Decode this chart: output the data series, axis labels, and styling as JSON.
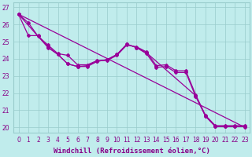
{
  "xlabel": "Windchill (Refroidissement éolien,°C)",
  "bg_color": "#c0ecec",
  "line_color": "#990099",
  "grid_color": "#99cccc",
  "xlim": [
    -0.5,
    23.5
  ],
  "ylim": [
    19.7,
    27.3
  ],
  "yticks": [
    20,
    21,
    22,
    23,
    24,
    25,
    26,
    27
  ],
  "xticks": [
    0,
    1,
    2,
    3,
    4,
    5,
    6,
    7,
    8,
    9,
    10,
    11,
    12,
    13,
    14,
    15,
    16,
    17,
    18,
    19,
    20,
    21,
    22,
    23
  ],
  "series": [
    {
      "x": [
        0,
        1,
        2,
        3,
        4,
        5,
        6,
        7,
        8,
        9,
        10,
        11,
        12,
        13,
        14,
        15,
        16,
        17,
        18,
        19,
        20,
        21,
        22,
        23
      ],
      "y": [
        26.6,
        26.1,
        25.3,
        24.8,
        24.3,
        24.2,
        23.65,
        23.65,
        23.9,
        23.9,
        24.2,
        24.8,
        24.7,
        24.4,
        23.6,
        23.65,
        23.3,
        23.3,
        21.9,
        20.7,
        20.1,
        20.1,
        20.1,
        20.1
      ]
    },
    {
      "x": [
        0,
        3,
        4,
        5,
        6,
        7,
        8,
        9,
        10,
        11,
        12,
        13,
        14,
        15,
        16,
        17,
        18,
        19,
        20,
        21,
        22,
        23
      ],
      "y": [
        26.6,
        24.65,
        24.25,
        23.7,
        23.55,
        23.6,
        23.85,
        23.95,
        24.25,
        24.85,
        24.65,
        24.3,
        23.5,
        23.55,
        23.2,
        23.2,
        21.8,
        20.65,
        20.05,
        20.05,
        20.05,
        20.05
      ]
    },
    {
      "x": [
        0,
        1,
        2,
        3,
        4,
        5,
        6,
        7,
        8,
        9,
        10,
        11,
        12,
        13,
        18,
        19,
        20,
        21,
        22,
        23
      ],
      "y": [
        26.6,
        25.35,
        25.35,
        24.7,
        24.25,
        23.7,
        23.55,
        23.55,
        23.85,
        23.95,
        24.25,
        24.85,
        24.65,
        24.35,
        21.85,
        20.65,
        20.05,
        20.05,
        20.05,
        20.05
      ]
    },
    {
      "x": [
        0,
        23
      ],
      "y": [
        26.6,
        20.0
      ]
    }
  ],
  "marker": "D",
  "markersize": 2.0,
  "linewidth": 0.9,
  "font_color": "#880088",
  "tick_fontsize": 5.5,
  "label_fontsize": 6.5
}
